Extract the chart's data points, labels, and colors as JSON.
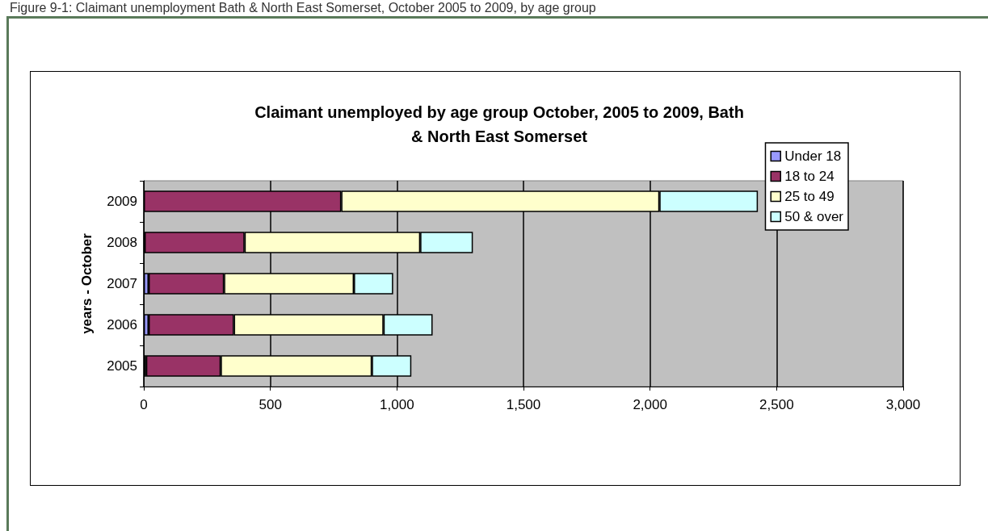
{
  "chart_data": {
    "type": "bar",
    "orientation": "horizontal",
    "stacked": true,
    "title": "Claimant unemployed by age group October, 2005 to 2009, Bath\n& North East Somerset",
    "ylabel": "years - October",
    "annotations": [
      "Figure 9-1: Claimant unemployment Bath & North East Somerset, October 2005 to 2009, by age group"
    ],
    "categories": [
      "2009",
      "2008",
      "2007",
      "2006",
      "2005"
    ],
    "series": [
      {
        "name": "Under 18",
        "color": "#9999ff",
        "values": [
          null,
          3,
          19,
          19,
          9
        ]
      },
      {
        "name": "18 to 24",
        "color": "#993366",
        "values": [
          780,
          395,
          298,
          337,
          295
        ]
      },
      {
        "name": "25 to 49",
        "color": "#ffffcc",
        "values": [
          1257,
          694,
          513,
          591,
          597
        ]
      },
      {
        "name": "50 & over",
        "color": "#ccffff",
        "values": [
          389,
          208,
          155,
          194,
          156
        ]
      }
    ],
    "xlim": [
      0,
      3000
    ],
    "xticks": [
      0,
      500,
      {
        "value": 1000,
        "label": "1,000"
      },
      {
        "value": 1500,
        "label": "1,500"
      },
      {
        "value": 2000,
        "label": "2,000"
      },
      {
        "value": 2500,
        "label": "2,500"
      },
      {
        "value": 3000,
        "label": "3,000"
      }
    ],
    "grid": "x",
    "legend": "right"
  }
}
